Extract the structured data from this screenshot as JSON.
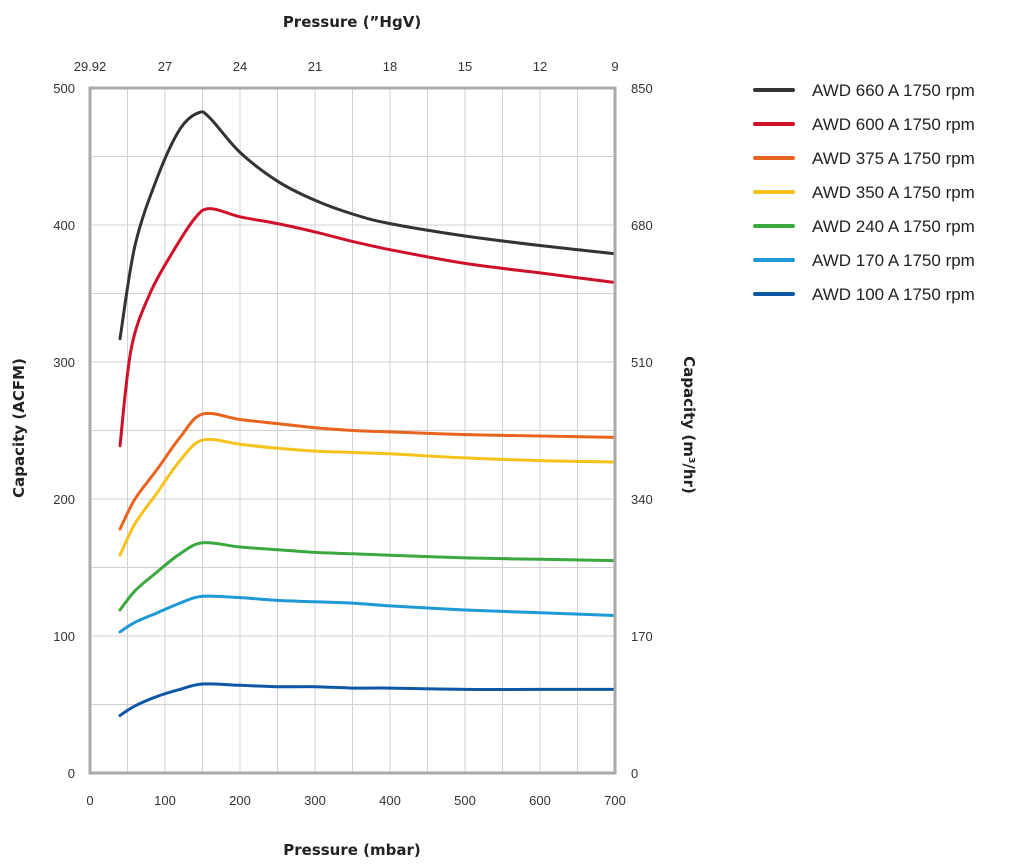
{
  "chart_data": {
    "type": "line",
    "xlabel": "Pressure (mbar)",
    "x2label": "Pressure (”HgV)",
    "ylabel": "Capacity (ACFM)",
    "y2label": "Capacity (m³/hr)",
    "xlim": [
      0,
      700
    ],
    "ylim": [
      0,
      500
    ],
    "x_ticks": [
      "0",
      "100",
      "200",
      "300",
      "400",
      "500",
      "600",
      "700"
    ],
    "x2_ticks": [
      {
        "label": "29.92",
        "mbar": 0
      },
      {
        "label": "27",
        "mbar": 100
      },
      {
        "label": "24",
        "mbar": 200
      },
      {
        "label": "21",
        "mbar": 300
      },
      {
        "label": "18",
        "mbar": 400
      },
      {
        "label": "15",
        "mbar": 500
      },
      {
        "label": "12",
        "mbar": 600
      },
      {
        "label": "9",
        "mbar": 700
      }
    ],
    "y_ticks": [
      "0",
      "100",
      "200",
      "300",
      "400",
      "500"
    ],
    "y2_ticks": [
      {
        "label": "0",
        "acfm": 0
      },
      {
        "label": "170",
        "acfm": 100
      },
      {
        "label": "340",
        "acfm": 200
      },
      {
        "label": "510",
        "acfm": 300
      },
      {
        "label": "680",
        "acfm": 400
      },
      {
        "label": "850",
        "acfm": 500
      }
    ],
    "grid": true,
    "legend_position": "right",
    "series": [
      {
        "name": "AWD 660 A 1750 rpm",
        "color": "#333333",
        "x": [
          40,
          60,
          90,
          120,
          145,
          160,
          200,
          250,
          300,
          350,
          400,
          500,
          600,
          700
        ],
        "y": [
          317,
          385,
          435,
          470,
          482,
          478,
          453,
          432,
          418,
          408,
          401,
          392,
          385,
          379
        ]
      },
      {
        "name": "AWD 600 A 1750 rpm",
        "color": "#d0102b",
        "x": [
          40,
          55,
          80,
          110,
          140,
          160,
          200,
          250,
          300,
          350,
          400,
          500,
          600,
          700
        ],
        "y": [
          239,
          310,
          350,
          380,
          405,
          412,
          406,
          401,
          395,
          388,
          382,
          372,
          365,
          358
        ]
      },
      {
        "name": "AWD 375 A 1750 rpm",
        "color": "#e8641e",
        "x": [
          40,
          60,
          90,
          120,
          150,
          200,
          250,
          300,
          350,
          400,
          500,
          600,
          700
        ],
        "y": [
          178,
          200,
          222,
          245,
          262,
          258,
          255,
          252,
          250,
          249,
          247,
          246,
          245
        ]
      },
      {
        "name": "AWD 350 A 1750 rpm",
        "color": "#f7c21a",
        "x": [
          40,
          60,
          90,
          120,
          150,
          200,
          250,
          300,
          350,
          400,
          500,
          600,
          700
        ],
        "y": [
          159,
          182,
          205,
          228,
          243,
          240,
          237,
          235,
          234,
          233,
          230,
          228,
          227
        ]
      },
      {
        "name": "AWD 240 A 1750 rpm",
        "color": "#3aa83e",
        "x": [
          40,
          60,
          90,
          120,
          150,
          200,
          250,
          300,
          350,
          400,
          500,
          600,
          700
        ],
        "y": [
          119,
          133,
          147,
          160,
          168,
          165,
          163,
          161,
          160,
          159,
          157,
          156,
          155
        ]
      },
      {
        "name": "AWD 170 A 1750 rpm",
        "color": "#1d9ad6",
        "x": [
          40,
          60,
          90,
          120,
          150,
          200,
          250,
          300,
          350,
          400,
          500,
          600,
          700
        ],
        "y": [
          103,
          110,
          117,
          124,
          129,
          128,
          126,
          125,
          124,
          122,
          119,
          117,
          115
        ]
      },
      {
        "name": "AWD 100 A 1750 rpm",
        "color": "#0d57a4",
        "x": [
          40,
          60,
          90,
          120,
          150,
          200,
          250,
          300,
          350,
          400,
          500,
          600,
          700
        ],
        "y": [
          42,
          49,
          56,
          61,
          65,
          64,
          63,
          63,
          62,
          62,
          61,
          61,
          61
        ]
      }
    ]
  }
}
